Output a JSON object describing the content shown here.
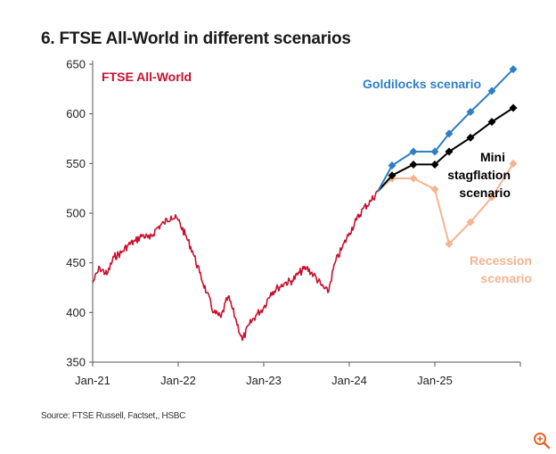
{
  "title": "6. FTSE All-World in different scenarios",
  "source": "Source: FTSE Russell, Factset,, HSBC",
  "icons": {
    "zoom": "zoom-in-icon"
  },
  "colors": {
    "ftse": "#c8102e",
    "goldilocks": "#2e7fc4",
    "mini_stagflation": "#000000",
    "recession": "#f4b48f",
    "zoom_icon": "#e8622a"
  },
  "chart_data": {
    "type": "line",
    "title": "6. FTSE All-World in different scenarios",
    "xlabel": "",
    "ylabel": "",
    "ylim": [
      350,
      650
    ],
    "yticks": [
      350,
      400,
      450,
      500,
      550,
      600,
      650
    ],
    "xlim": [
      "2021-01",
      "2026-01"
    ],
    "xticks": [
      "Jan-21",
      "Jan-22",
      "Jan-23",
      "Jan-24",
      "Jan-25"
    ],
    "grid": false,
    "annotations": [
      {
        "text": "FTSE All-World",
        "series": "ftse"
      },
      {
        "text": "Goldilocks scenario",
        "series": "goldilocks"
      },
      {
        "text": "Mini stagflation scenario",
        "series": "mini_stagflation",
        "lines": [
          "Mini",
          "stagflation",
          "scenario"
        ]
      },
      {
        "text": "Recession scenario",
        "series": "recession",
        "lines": [
          "Recession",
          "scenario"
        ]
      }
    ],
    "series": [
      {
        "name": "FTSE All-World",
        "key": "ftse",
        "markers": false,
        "x": [
          "2021-01",
          "2021-02",
          "2021-03",
          "2021-04",
          "2021-05",
          "2021-06",
          "2021-07",
          "2021-08",
          "2021-09",
          "2021-10",
          "2021-11",
          "2021-12",
          "2022-01",
          "2022-02",
          "2022-03",
          "2022-04",
          "2022-05",
          "2022-06",
          "2022-07",
          "2022-08",
          "2022-09",
          "2022-10",
          "2022-11",
          "2022-12",
          "2023-01",
          "2023-02",
          "2023-03",
          "2023-04",
          "2023-05",
          "2023-06",
          "2023-07",
          "2023-08",
          "2023-09",
          "2023-10",
          "2023-11",
          "2023-12",
          "2024-01",
          "2024-02",
          "2024-03",
          "2024-04",
          "2024-05"
        ],
        "y": [
          430,
          445,
          438,
          456,
          460,
          468,
          472,
          478,
          474,
          485,
          490,
          497,
          493,
          478,
          462,
          440,
          420,
          400,
          395,
          416,
          395,
          372,
          388,
          398,
          405,
          420,
          425,
          430,
          432,
          440,
          445,
          438,
          428,
          420,
          450,
          465,
          480,
          493,
          505,
          512,
          522
        ]
      },
      {
        "name": "Goldilocks scenario",
        "key": "goldilocks",
        "markers": true,
        "x": [
          "2024-05",
          "2024-07",
          "2024-10",
          "2025-01",
          "2025-03",
          "2025-06",
          "2025-09",
          "2025-12"
        ],
        "y": [
          522,
          548,
          562,
          562,
          580,
          602,
          623,
          645
        ]
      },
      {
        "name": "Mini stagflation scenario",
        "key": "mini_stagflation",
        "markers": true,
        "x": [
          "2024-05",
          "2024-07",
          "2024-10",
          "2025-01",
          "2025-03",
          "2025-06",
          "2025-09",
          "2025-12"
        ],
        "y": [
          522,
          538,
          549,
          549,
          562,
          576,
          592,
          606
        ]
      },
      {
        "name": "Recession scenario",
        "key": "recession",
        "markers": true,
        "x": [
          "2024-05",
          "2024-07",
          "2024-10",
          "2025-01",
          "2025-03",
          "2025-06",
          "2025-09",
          "2025-12"
        ],
        "y": [
          522,
          535,
          535,
          524,
          469,
          491,
          516,
          550
        ]
      }
    ]
  }
}
